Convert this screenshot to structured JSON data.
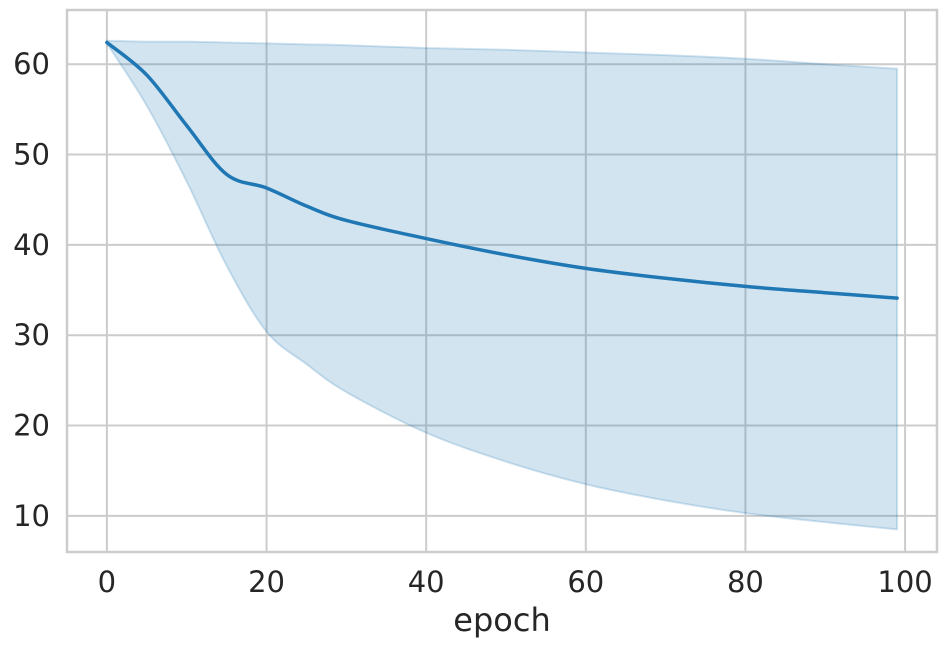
{
  "chart_data": {
    "type": "line",
    "title": "",
    "xlabel": "epoch",
    "ylabel": "",
    "xlim": [
      -5,
      104
    ],
    "ylim": [
      6,
      66
    ],
    "x_ticks": [
      0,
      20,
      40,
      60,
      80,
      100
    ],
    "y_ticks": [
      10,
      20,
      30,
      40,
      50,
      60
    ],
    "grid": true,
    "colors": {
      "line": "#1f77b4",
      "band": "#1f77b4",
      "grid": "#cccccc",
      "spine": "#cccccc"
    },
    "series": [
      {
        "x": [
          0,
          5,
          10,
          15,
          20,
          25,
          30,
          40,
          50,
          60,
          70,
          80,
          90,
          99
        ],
        "values": [
          62.4,
          58.8,
          53.2,
          47.8,
          46.3,
          44.3,
          42.7,
          40.7,
          38.9,
          37.4,
          36.3,
          35.4,
          34.7,
          34.1
        ],
        "band_lower": [
          62.3,
          55.4,
          47.0,
          37.7,
          30.4,
          26.8,
          23.7,
          19.2,
          16.0,
          13.5,
          11.7,
          10.3,
          9.3,
          8.5
        ],
        "band_upper": [
          62.6,
          62.5,
          62.5,
          62.4,
          62.3,
          62.2,
          62.1,
          61.8,
          61.6,
          61.3,
          61.0,
          60.6,
          60.0,
          59.5
        ]
      }
    ]
  }
}
